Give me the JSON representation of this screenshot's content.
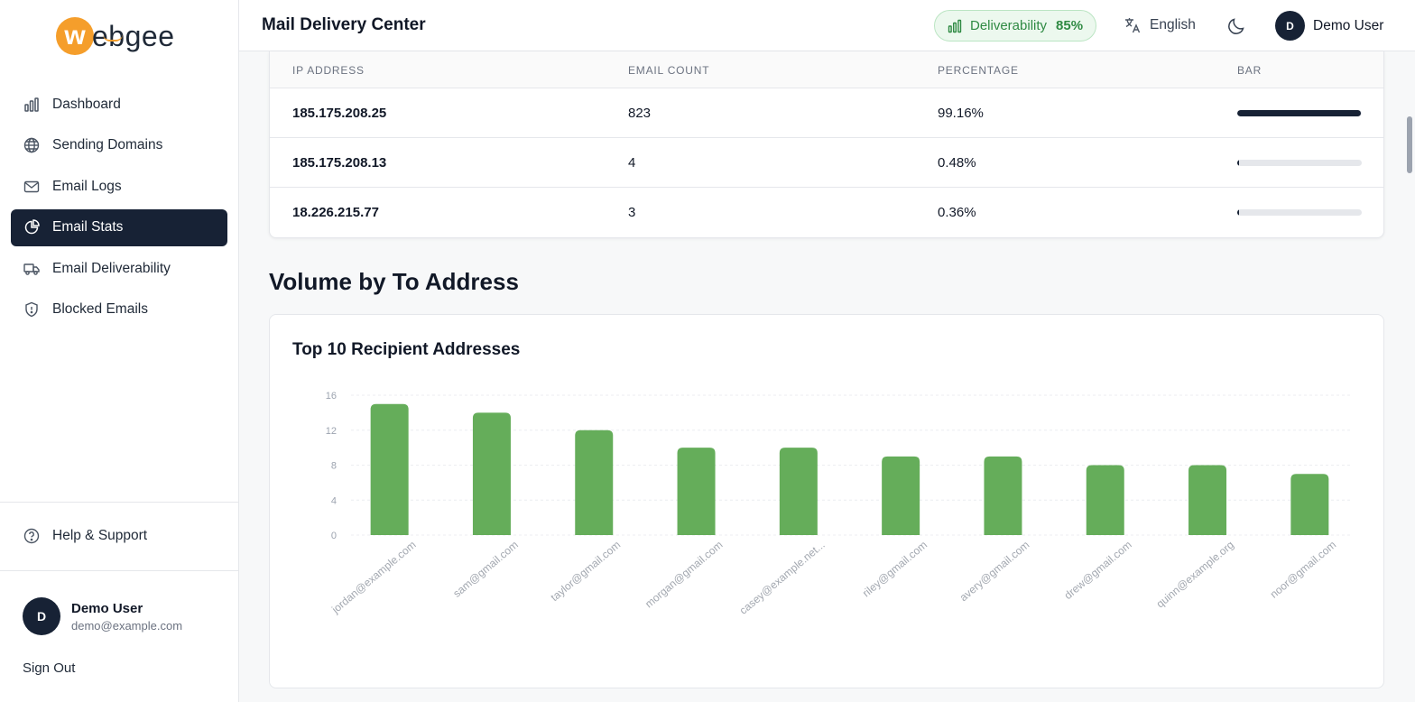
{
  "brand": {
    "logo_letter": "w",
    "logo_text": "ebgee",
    "accent": "#f59e2b"
  },
  "sidebar": {
    "items": [
      {
        "label": "Dashboard",
        "icon": "chart-bars-icon",
        "active": false
      },
      {
        "label": "Sending Domains",
        "icon": "globe-icon",
        "active": false
      },
      {
        "label": "Email Logs",
        "icon": "mail-icon",
        "active": false
      },
      {
        "label": "Email Stats",
        "icon": "pie-chart-icon",
        "active": true
      },
      {
        "label": "Email Deliverability",
        "icon": "truck-icon",
        "active": false
      },
      {
        "label": "Blocked Emails",
        "icon": "shield-icon",
        "active": false
      }
    ],
    "help_label": "Help & Support",
    "user": {
      "initial": "D",
      "name": "Demo User",
      "email": "demo@example.com"
    },
    "signout_label": "Sign Out"
  },
  "header": {
    "title": "Mail Delivery Center",
    "deliverability_label": "Deliverability",
    "deliverability_value": "85%",
    "language": "English",
    "user_initial": "D",
    "user_name": "Demo User"
  },
  "ip_table": {
    "columns": [
      "IP ADDRESS",
      "EMAIL COUNT",
      "PERCENTAGE",
      "BAR"
    ],
    "rows": [
      {
        "ip": "185.175.208.25",
        "count": "823",
        "percentage": "99.16%",
        "fraction": 0.9916
      },
      {
        "ip": "185.175.208.13",
        "count": "4",
        "percentage": "0.48%",
        "fraction": 0.0048
      },
      {
        "ip": "18.226.215.77",
        "count": "3",
        "percentage": "0.36%",
        "fraction": 0.0036
      }
    ]
  },
  "section": {
    "title": "Volume by To Address"
  },
  "chart_card": {
    "title": "Top 10 Recipient Addresses"
  },
  "chart_data": {
    "type": "bar",
    "title": "Top 10 Recipient Addresses",
    "categories": [
      "jordan@example.com",
      "sam@gmail.com",
      "taylor@gmail.com",
      "morgan@gmail.com",
      "casey@example.net...",
      "riley@gmail.com",
      "avery@gmail.com",
      "drew@gmail.com",
      "quinn@example.org",
      "noor@gmail.com"
    ],
    "values": [
      15,
      14,
      12,
      10,
      10,
      9,
      9,
      8,
      8,
      7
    ],
    "yticks": [
      0,
      4,
      8,
      12,
      16
    ],
    "ylim": [
      0,
      16
    ],
    "grid": true,
    "bar_color": "#65ad5a"
  }
}
